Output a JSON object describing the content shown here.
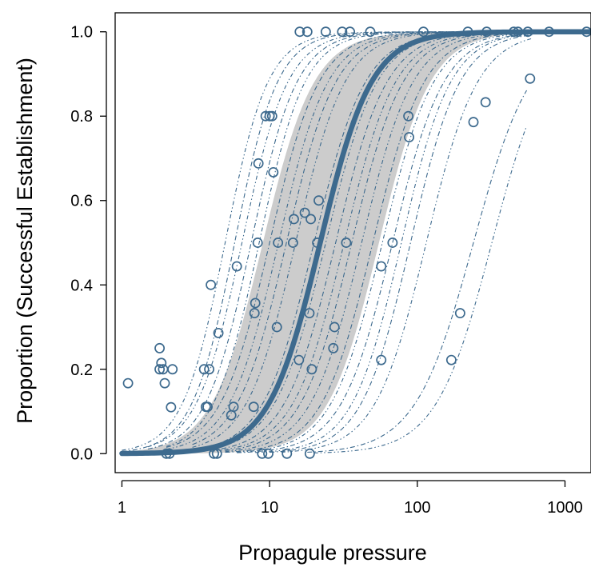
{
  "chart_data": {
    "type": "scatter",
    "xlabel": "Propagule pressure",
    "ylabel": "Proportion (Successful Establishment)",
    "x_scale": "log",
    "xlim": [
      0.9,
      1500
    ],
    "ylim": [
      -0.045,
      1.045
    ],
    "x_ticks": [
      1,
      10,
      100,
      1000
    ],
    "x_tick_labels": [
      "1",
      "10",
      "100",
      "1000"
    ],
    "y_ticks": [
      0,
      0.2,
      0.4,
      0.6,
      0.8,
      1.0
    ],
    "y_tick_labels": [
      "0.0",
      "0.2",
      "0.4",
      "0.6",
      "0.8",
      "1.0"
    ],
    "colors": {
      "points": "#3d6a8e",
      "main_curve": "#3d6a8e",
      "study_curves": "#3d6a8e",
      "confidence_band": "#cccccc",
      "axis": "#000000"
    },
    "main_curve": {
      "model": "logistic on log10(x)",
      "midpoint_x": 22,
      "slope_per_log10": 2.5,
      "x_range": [
        1,
        1500
      ]
    },
    "confidence_band": {
      "lower_midpoint_x": 55,
      "upper_midpoint_x": 9,
      "slope_per_log10": 2.5,
      "x_range": [
        1,
        1500
      ]
    },
    "study_curves": [
      {
        "midpoint_x": 5,
        "slope_per_log10": 3.0,
        "x_range": [
          1,
          200
        ]
      },
      {
        "midpoint_x": 5.8,
        "slope_per_log10": 3.0,
        "x_range": [
          1,
          200
        ]
      },
      {
        "midpoint_x": 6.5,
        "slope_per_log10": 2.8,
        "x_range": [
          1.5,
          200
        ]
      },
      {
        "midpoint_x": 7.5,
        "slope_per_log10": 2.8,
        "x_range": [
          1.5,
          300
        ]
      },
      {
        "midpoint_x": 8.5,
        "slope_per_log10": 2.8,
        "x_range": [
          2,
          300
        ]
      },
      {
        "midpoint_x": 10,
        "slope_per_log10": 2.6,
        "x_range": [
          2,
          400
        ]
      },
      {
        "midpoint_x": 11.5,
        "slope_per_log10": 2.6,
        "x_range": [
          2,
          500
        ]
      },
      {
        "midpoint_x": 13,
        "slope_per_log10": 2.6,
        "x_range": [
          3,
          600
        ]
      },
      {
        "midpoint_x": 15,
        "slope_per_log10": 2.6,
        "x_range": [
          3,
          600
        ]
      },
      {
        "midpoint_x": 20,
        "slope_per_log10": 2.5,
        "x_range": [
          3,
          800
        ]
      },
      {
        "midpoint_x": 24,
        "slope_per_log10": 2.5,
        "x_range": [
          4,
          900
        ]
      },
      {
        "midpoint_x": 28,
        "slope_per_log10": 2.5,
        "x_range": [
          4,
          1000
        ]
      },
      {
        "midpoint_x": 32,
        "slope_per_log10": 2.5,
        "x_range": [
          4,
          1000
        ]
      },
      {
        "midpoint_x": 36,
        "slope_per_log10": 2.5,
        "x_range": [
          5,
          800
        ]
      },
      {
        "midpoint_x": 42,
        "slope_per_log10": 2.5,
        "x_range": [
          5,
          800
        ]
      },
      {
        "midpoint_x": 50,
        "slope_per_log10": 2.5,
        "x_range": [
          5,
          600
        ]
      },
      {
        "midpoint_x": 58,
        "slope_per_log10": 2.5,
        "x_range": [
          6,
          600
        ]
      },
      {
        "midpoint_x": 68,
        "slope_per_log10": 2.5,
        "x_range": [
          6,
          600
        ]
      },
      {
        "midpoint_x": 78,
        "slope_per_log10": 2.6,
        "x_range": [
          8,
          600
        ]
      },
      {
        "midpoint_x": 90,
        "slope_per_log10": 2.6,
        "x_range": [
          10,
          600
        ]
      },
      {
        "midpoint_x": 115,
        "slope_per_log10": 2.5,
        "x_range": [
          12,
          600
        ]
      },
      {
        "midpoint_x": 240,
        "slope_per_log10": 2.2,
        "x_range": [
          18,
          550
        ]
      },
      {
        "midpoint_x": 320,
        "slope_per_log10": 2.3,
        "x_range": [
          20,
          550
        ]
      }
    ],
    "points": [
      {
        "x": 1.1,
        "y": 0.167
      },
      {
        "x": 1.8,
        "y": 0.25
      },
      {
        "x": 1.8,
        "y": 0.2
      },
      {
        "x": 1.85,
        "y": 0.215
      },
      {
        "x": 1.9,
        "y": 0.2
      },
      {
        "x": 1.95,
        "y": 0.167
      },
      {
        "x": 2.0,
        "y": 0.0
      },
      {
        "x": 2.1,
        "y": 0.0
      },
      {
        "x": 2.15,
        "y": 0.11
      },
      {
        "x": 2.2,
        "y": 0.2
      },
      {
        "x": 3.6,
        "y": 0.2
      },
      {
        "x": 3.7,
        "y": 0.111
      },
      {
        "x": 3.8,
        "y": 0.111
      },
      {
        "x": 3.9,
        "y": 0.2
      },
      {
        "x": 4.0,
        "y": 0.4
      },
      {
        "x": 4.2,
        "y": 0.0
      },
      {
        "x": 4.4,
        "y": 0.0
      },
      {
        "x": 4.5,
        "y": 0.286
      },
      {
        "x": 5.5,
        "y": 0.091
      },
      {
        "x": 5.7,
        "y": 0.111
      },
      {
        "x": 6.0,
        "y": 0.444
      },
      {
        "x": 7.8,
        "y": 0.111
      },
      {
        "x": 7.9,
        "y": 0.333
      },
      {
        "x": 8.0,
        "y": 0.357
      },
      {
        "x": 8.3,
        "y": 0.5
      },
      {
        "x": 8.4,
        "y": 0.688
      },
      {
        "x": 8.9,
        "y": 0.0
      },
      {
        "x": 9.4,
        "y": 0.8
      },
      {
        "x": 9.8,
        "y": 0.0
      },
      {
        "x": 10.0,
        "y": 0.8
      },
      {
        "x": 10.4,
        "y": 0.8
      },
      {
        "x": 10.6,
        "y": 0.667
      },
      {
        "x": 11.2,
        "y": 0.3
      },
      {
        "x": 11.4,
        "y": 0.5
      },
      {
        "x": 13.1,
        "y": 0.0
      },
      {
        "x": 14.4,
        "y": 0.5
      },
      {
        "x": 14.6,
        "y": 0.556
      },
      {
        "x": 15.8,
        "y": 0.222
      },
      {
        "x": 16.0,
        "y": 1.0
      },
      {
        "x": 17.3,
        "y": 0.571
      },
      {
        "x": 18.0,
        "y": 1.0
      },
      {
        "x": 18.6,
        "y": 0.333
      },
      {
        "x": 18.7,
        "y": 0.0
      },
      {
        "x": 19.0,
        "y": 0.556
      },
      {
        "x": 19.3,
        "y": 0.2
      },
      {
        "x": 21.0,
        "y": 0.5
      },
      {
        "x": 21.5,
        "y": 0.6
      },
      {
        "x": 24.0,
        "y": 1.0
      },
      {
        "x": 27.0,
        "y": 0.25
      },
      {
        "x": 27.5,
        "y": 0.3
      },
      {
        "x": 31.0,
        "y": 1.0
      },
      {
        "x": 33.0,
        "y": 0.5
      },
      {
        "x": 35.0,
        "y": 1.0
      },
      {
        "x": 48.0,
        "y": 1.0
      },
      {
        "x": 57.0,
        "y": 0.222
      },
      {
        "x": 57.0,
        "y": 0.444
      },
      {
        "x": 68.0,
        "y": 0.5
      },
      {
        "x": 87.0,
        "y": 0.8
      },
      {
        "x": 88.0,
        "y": 0.75
      },
      {
        "x": 110.0,
        "y": 1.0
      },
      {
        "x": 170.0,
        "y": 0.222
      },
      {
        "x": 195.0,
        "y": 0.333
      },
      {
        "x": 220.0,
        "y": 1.0
      },
      {
        "x": 240.0,
        "y": 0.786
      },
      {
        "x": 290.0,
        "y": 0.833
      },
      {
        "x": 295.0,
        "y": 1.0
      },
      {
        "x": 450.0,
        "y": 1.0
      },
      {
        "x": 480.0,
        "y": 1.0
      },
      {
        "x": 560.0,
        "y": 1.0
      },
      {
        "x": 580.0,
        "y": 0.889
      },
      {
        "x": 780.0,
        "y": 1.0
      },
      {
        "x": 1400.0,
        "y": 1.0
      }
    ]
  }
}
